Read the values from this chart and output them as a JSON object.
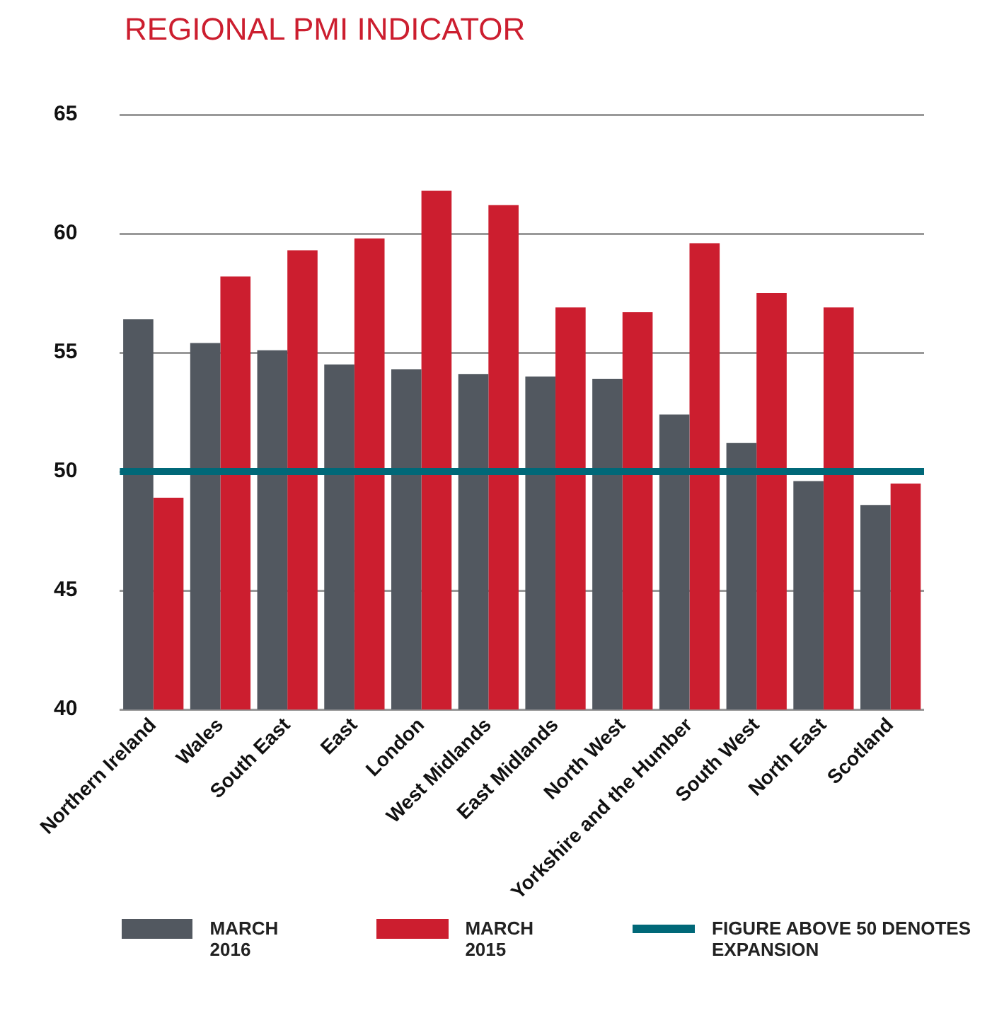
{
  "chart_data": {
    "type": "bar",
    "title": "REGIONAL PMI INDICATOR",
    "categories": [
      "Northern Ireland",
      "Wales",
      "South East",
      "East",
      "London",
      "West Midlands",
      "East Midlands",
      "North West",
      "Yorkshire and the Humber",
      "South West",
      "North East",
      "Scotland"
    ],
    "series": [
      {
        "name": "MARCH 2016",
        "color": "#525860",
        "values": [
          56.4,
          55.4,
          55.1,
          54.5,
          54.3,
          54.1,
          54.0,
          53.9,
          52.4,
          51.2,
          49.6,
          48.6
        ]
      },
      {
        "name": "MARCH 2015",
        "color": "#cc1e2f",
        "values": [
          48.9,
          58.2,
          59.3,
          59.8,
          61.8,
          61.2,
          56.9,
          56.7,
          59.6,
          57.5,
          56.9,
          49.5
        ]
      }
    ],
    "ylim": [
      40,
      65
    ],
    "yticks": [
      40,
      45,
      50,
      55,
      60,
      65
    ],
    "grid": "y",
    "legend": "bottom",
    "ref_lines": [
      {
        "axis": "y",
        "value": 50,
        "label": "FIGURE ABOVE 50 DENOTES EXPANSION",
        "color": "#006878"
      }
    ]
  }
}
